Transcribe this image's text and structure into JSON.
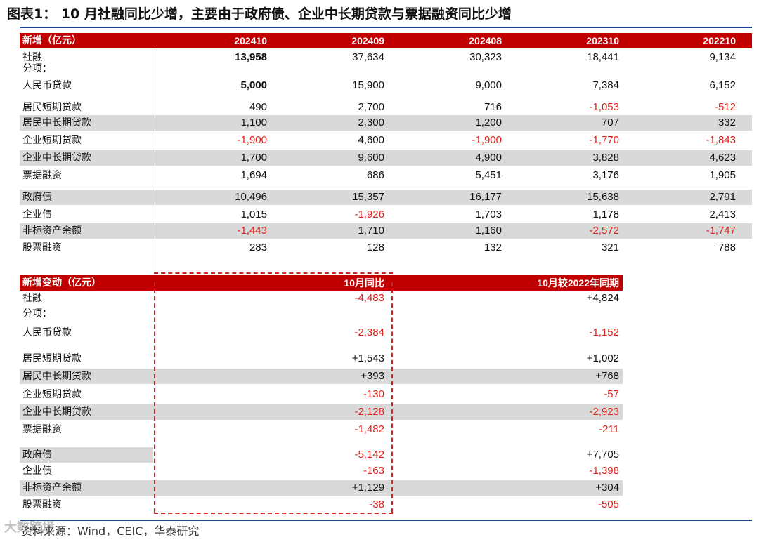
{
  "title": "图表1：  10 月社融同比少增，主要由于政府债、企业中长期贷款与票据融资同比少增",
  "source": "资料来源：Wind，CEIC，华泰研究",
  "watermark": "大数跨境",
  "colors": {
    "header_bg": "#c00000",
    "shade": "#d9d9d9",
    "negative": "#e0201c",
    "rule": "#1f3f88"
  },
  "table1": {
    "header": [
      "新增（亿元）",
      "202410",
      "202409",
      "202408",
      "202310",
      "202210"
    ],
    "rows": [
      {
        "label": "社融",
        "values": [
          "13,958",
          "37,634",
          "30,323",
          "18,441",
          "9,134"
        ]
      },
      {
        "label": "分项：",
        "values": [
          "",
          "",
          "",
          "",
          ""
        ]
      },
      {
        "label": "人民币贷款",
        "values": [
          "5,000",
          "15,900",
          "9,000",
          "7,384",
          "6,152"
        ]
      },
      {
        "label": "居民短期贷款",
        "values": [
          "490",
          "2,700",
          "716",
          "-1,053",
          "-512"
        ]
      },
      {
        "label": "居民中长期贷款",
        "values": [
          "1,100",
          "2,300",
          "1,200",
          "707",
          "332"
        ]
      },
      {
        "label": "企业短期贷款",
        "values": [
          "-1,900",
          "4,600",
          "-1,900",
          "-1,770",
          "-1,843"
        ]
      },
      {
        "label": "企业中长期贷款",
        "values": [
          "1,700",
          "9,600",
          "4,900",
          "3,828",
          "4,623"
        ]
      },
      {
        "label": "票据融资",
        "values": [
          "1,694",
          "686",
          "5,451",
          "3,176",
          "1,905"
        ]
      },
      {
        "label": "政府债",
        "values": [
          "10,496",
          "15,357",
          "16,177",
          "15,638",
          "2,791"
        ]
      },
      {
        "label": "企业债",
        "values": [
          "1,015",
          "-1,926",
          "1,703",
          "1,178",
          "2,413"
        ]
      },
      {
        "label": "非标资产余额",
        "values": [
          "-1,443",
          "1,710",
          "1,160",
          "-2,572",
          "-1,747"
        ]
      },
      {
        "label": "股票融资",
        "values": [
          "283",
          "128",
          "132",
          "321",
          "788"
        ]
      }
    ]
  },
  "table2": {
    "header": [
      "新增变动（亿元）",
      "10月同比",
      "10月较2022年同期"
    ],
    "rows": [
      {
        "label": "社融",
        "values": [
          "-4,483",
          "+4,824"
        ]
      },
      {
        "label": "分项：",
        "values": [
          "",
          ""
        ]
      },
      {
        "label": "人民币贷款",
        "values": [
          "-2,384",
          "-1,152"
        ]
      },
      {
        "label": "居民短期贷款",
        "values": [
          "+1,543",
          "+1,002"
        ]
      },
      {
        "label": "居民中长期贷款",
        "values": [
          "+393",
          "+768"
        ]
      },
      {
        "label": "企业短期贷款",
        "values": [
          "-130",
          "-57"
        ]
      },
      {
        "label": "企业中长期贷款",
        "values": [
          "-2,128",
          "-2,923"
        ]
      },
      {
        "label": "票据融资",
        "values": [
          "-1,482",
          "-211"
        ]
      },
      {
        "label": "政府债",
        "values": [
          "-5,142",
          "+7,705"
        ]
      },
      {
        "label": "企业债",
        "values": [
          "-163",
          "-1,398"
        ]
      },
      {
        "label": "非标资产余额",
        "values": [
          "+1,129",
          "+304"
        ]
      },
      {
        "label": "股票融资",
        "values": [
          "-38",
          "-505"
        ]
      }
    ]
  }
}
